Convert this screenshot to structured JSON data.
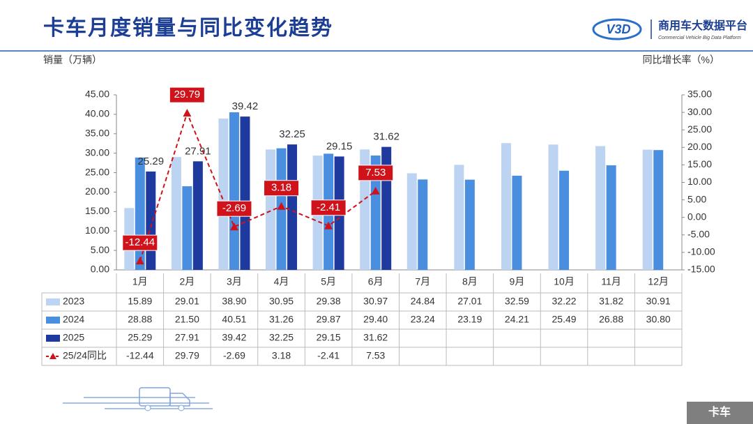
{
  "header": {
    "title": "卡车月度销量与同比变化趋势",
    "logo_text": "V3D",
    "brand": "商用车大数据平台",
    "brand_en": "Commercial Vehicle Big Data Platform"
  },
  "chart_data": {
    "type": "bar",
    "y_label": "销量（万辆）",
    "y2_label": "同比增长率（%）",
    "categories": [
      "1月",
      "2月",
      "3月",
      "4月",
      "5月",
      "6月",
      "7月",
      "8月",
      "9月",
      "10月",
      "11月",
      "12月"
    ],
    "series": [
      {
        "name": "2023",
        "color": "#bcd3f2",
        "values": [
          15.89,
          29.01,
          38.9,
          30.95,
          29.38,
          30.97,
          24.84,
          27.01,
          32.59,
          32.22,
          31.82,
          30.91
        ],
        "value_labels": [
          "15.89",
          "29.01",
          "38.90",
          "30.95",
          "29.38",
          "30.97",
          "24.84",
          "27.01",
          "32.59",
          "32.22",
          "31.82",
          "30.91"
        ]
      },
      {
        "name": "2024",
        "color": "#4a8ee0",
        "values": [
          28.88,
          21.5,
          40.51,
          31.26,
          29.87,
          29.4,
          23.24,
          23.19,
          24.21,
          25.49,
          26.88,
          30.8
        ],
        "value_labels": [
          "28.88",
          "21.50",
          "40.51",
          "31.26",
          "29.87",
          "29.40",
          "23.24",
          "23.19",
          "24.21",
          "25.49",
          "26.88",
          "30.80"
        ]
      },
      {
        "name": "2025",
        "color": "#1f3a9e",
        "values": [
          25.29,
          27.91,
          39.42,
          32.25,
          29.15,
          31.62,
          null,
          null,
          null,
          null,
          null,
          null
        ],
        "value_labels": [
          "25.29",
          "27.91",
          "39.42",
          "32.25",
          "29.15",
          "31.62",
          null,
          null,
          null,
          null,
          null,
          null
        ]
      },
      {
        "name": "25/24同比",
        "type": "line",
        "axis": "y2",
        "color": "#d0121b",
        "values": [
          -12.44,
          29.79,
          -2.69,
          3.18,
          -2.41,
          7.53,
          null,
          null,
          null,
          null,
          null,
          null
        ],
        "value_labels": [
          "-12.44",
          "29.79",
          "-2.69",
          "3.18",
          "-2.41",
          "7.53",
          null,
          null,
          null,
          null,
          null,
          null
        ]
      }
    ],
    "ylim": [
      0,
      45
    ],
    "yticks": [
      {
        "value": 0,
        "label": "0.00"
      },
      {
        "value": 5,
        "label": "5.00"
      },
      {
        "value": 10,
        "label": "10.00"
      },
      {
        "value": 15,
        "label": "15.00"
      },
      {
        "value": 20,
        "label": "20.00"
      },
      {
        "value": 25,
        "label": "25.00"
      },
      {
        "value": 30,
        "label": "30.00"
      },
      {
        "value": 35,
        "label": "35.00"
      },
      {
        "value": 40,
        "label": "40.00"
      },
      {
        "value": 45,
        "label": "45.00"
      }
    ],
    "y2lim": [
      -15,
      35
    ],
    "y2ticks": [
      {
        "value": -15,
        "label": "-15.00"
      },
      {
        "value": -10,
        "label": "-10.00"
      },
      {
        "value": -5,
        "label": "-5.00"
      },
      {
        "value": 0,
        "label": "0.00"
      },
      {
        "value": 5,
        "label": "5.00"
      },
      {
        "value": 10,
        "label": "10.00"
      },
      {
        "value": 15,
        "label": "15.00"
      },
      {
        "value": 20,
        "label": "20.00"
      },
      {
        "value": 25,
        "label": "25.00"
      },
      {
        "value": 30,
        "label": "30.00"
      },
      {
        "value": 35,
        "label": "35.00"
      }
    ],
    "grid": false
  },
  "footer": {
    "tag": "卡车"
  }
}
